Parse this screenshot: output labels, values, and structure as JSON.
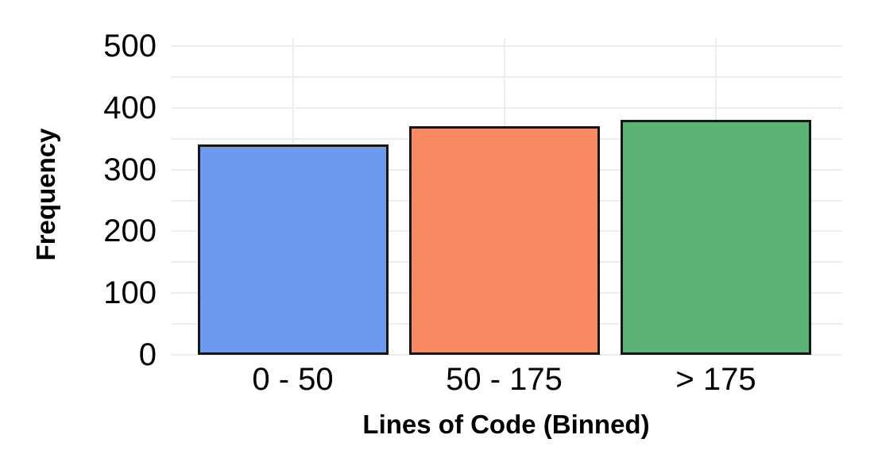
{
  "chart_data": {
    "type": "bar",
    "title": "",
    "categories": [
      "0 - 50",
      "50 - 175",
      "> 175"
    ],
    "values": [
      340,
      370,
      380
    ],
    "bar_colors": [
      "#6C9AEF",
      "#FA8A64",
      "#5BB377"
    ],
    "bar_border_color": "#161616",
    "xlabel": "Lines of Code (Binned)",
    "ylabel": "Frequency",
    "ylim": [
      0,
      500
    ],
    "yticks": [
      0,
      100,
      200,
      300,
      400,
      500
    ],
    "minor_gridline_step": 50,
    "gridlines": "horizontal every 50, vertical at category centers",
    "gridline_color": "#EDEDED",
    "legend": "none",
    "background_color": "#FFFFFF",
    "text_color": "#000000"
  }
}
